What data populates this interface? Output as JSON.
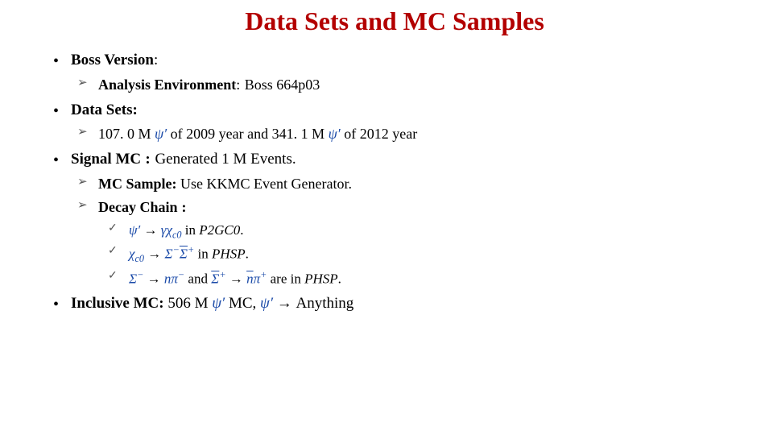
{
  "title": "Data Sets and MC Samples",
  "colors": {
    "title": "#b30000",
    "text": "#000000",
    "symbol": "#1a4aa8",
    "bullet_l2": "#555555",
    "bullet_l3": "#555555",
    "background": "#ffffff"
  },
  "typography": {
    "family": "Times New Roman",
    "title_fontsize": 32,
    "l1_fontsize": 19,
    "l2_fontsize": 18,
    "l3_fontsize": 17
  },
  "sections": {
    "boss": {
      "label": "Boss Version",
      "env_label": "Analysis Environment",
      "env_value": "Boss 664p03"
    },
    "datasets": {
      "label": "Data Sets:",
      "line": {
        "count_2009": "107. 0 M",
        "psi_prime": "ψ′",
        "text_2009": " of 2009 year and ",
        "count_2012": "341. 1 M",
        "text_2012": " of 2012 year"
      }
    },
    "signal_mc": {
      "label": "Signal MC",
      "generated": "Generated 1 M Events.",
      "mc_sample_label": "MC Sample:",
      "mc_sample_value": " Use  KKMC Event Generator.",
      "decay_chain_label": "Decay Chain",
      "chain": {
        "line1": {
          "lhs_psi": "ψ′",
          "arrow": "→",
          "gamma": "γ",
          "chi": "χ",
          "chi_sub": "c0",
          "tail": " in ",
          "mode": "P2GC0",
          "end": "."
        },
        "line2": {
          "chi": "χ",
          "chi_sub": "c0",
          "arrow": " →  ",
          "sigma_minus": "Σ",
          "sigma_minus_sup": "−",
          "sigma_plus_bar": "Σ",
          "sigma_plus_sup": "+",
          "tail": "in ",
          "mode": "PHSP",
          "end": "."
        },
        "line3": {
          "sigma_minus": "Σ",
          "sigma_minus_sup": "−",
          "arrow1": " →  ",
          "n": "n",
          "pi": "π",
          "pi_sup_minus": "−",
          "and": " and   ",
          "sigma_plus_bar": "Σ",
          "sigma_plus_sup": "+",
          "arrow2": " → ",
          "nbar": "n",
          "pi2": "π",
          "pi_sup_plus": "+",
          "tail": "are in ",
          "mode": "PHSP",
          "end": "."
        }
      }
    },
    "inclusive_mc": {
      "label": "Inclusive MC:",
      "count": "  506 M",
      "psi_prime": "ψ′",
      "mc_text": " MC,   ",
      "arrow": "→",
      "anything": " Anything"
    }
  }
}
